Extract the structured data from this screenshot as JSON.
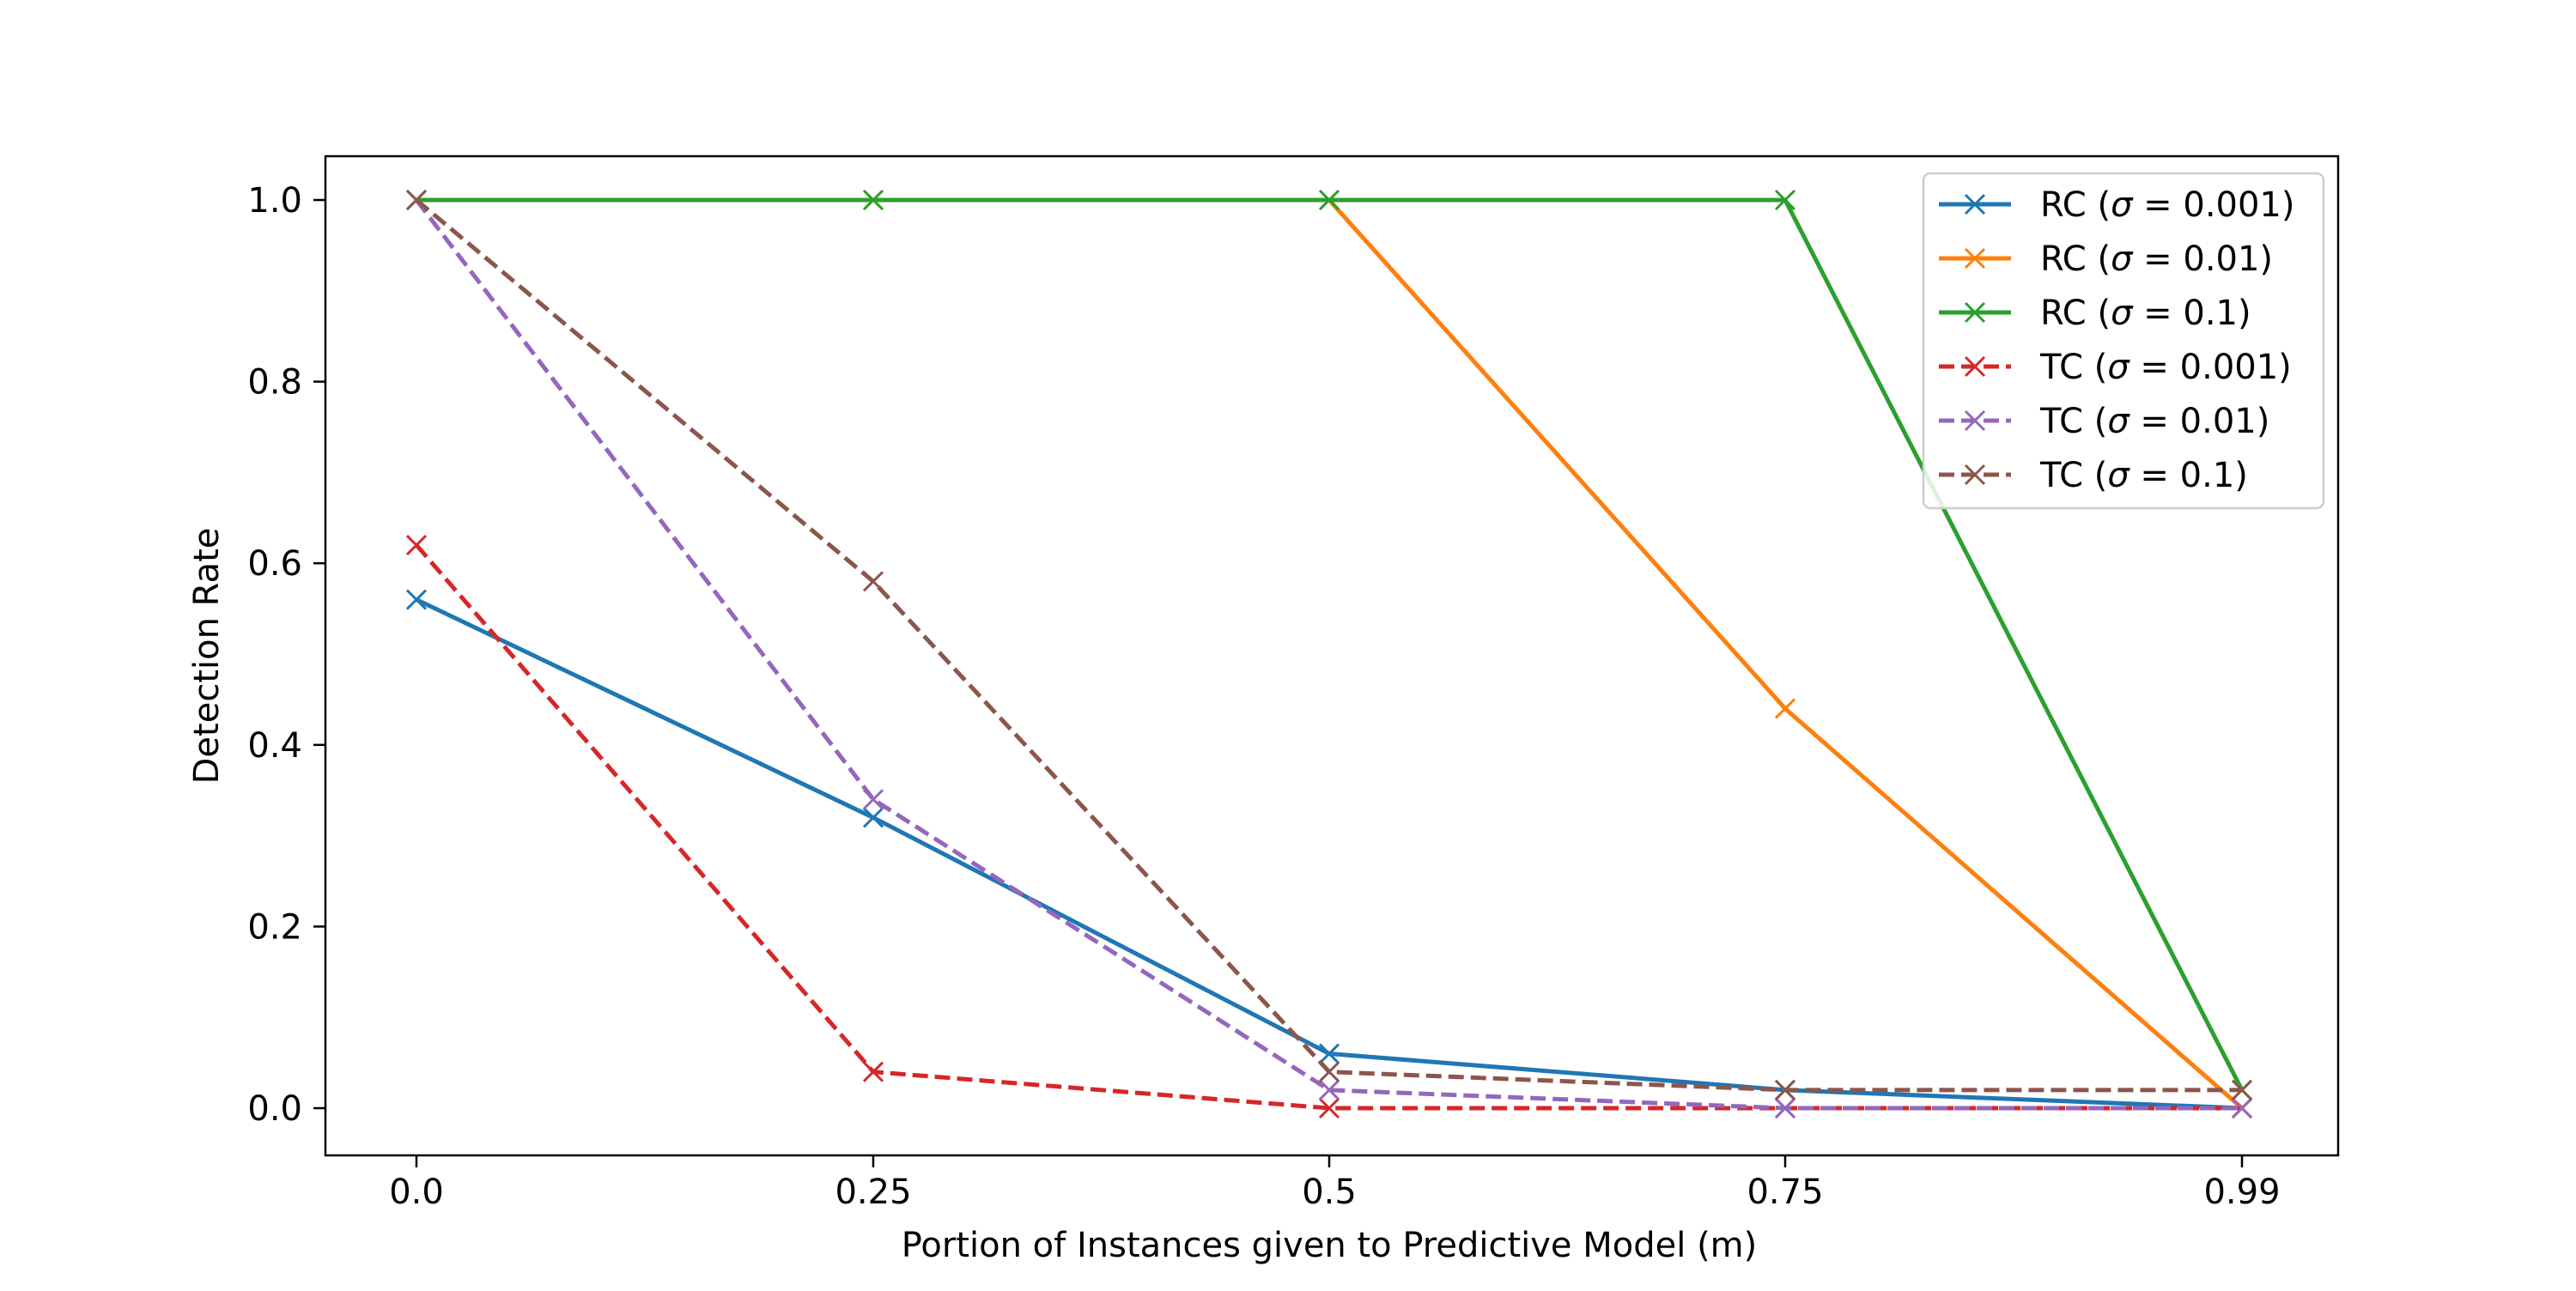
{
  "chart_data": {
    "type": "line",
    "title": "",
    "xlabel": "Portion of Instances given to Predictive Model (m)",
    "ylabel": "Detection Rate",
    "categories": [
      "0.0",
      "0.25",
      "0.5",
      "0.75",
      "0.99"
    ],
    "y_ticks": [
      "0.0",
      "0.2",
      "0.4",
      "0.6",
      "0.8",
      "1.0"
    ],
    "ylim": [
      -0.05,
      1.05
    ],
    "grid": false,
    "legend_position": "top-right",
    "series": [
      {
        "name": "RC",
        "sigma": "0.001",
        "color": "#1f77b4",
        "dashed": false,
        "values": [
          0.56,
          0.32,
          0.06,
          0.02,
          0.0
        ]
      },
      {
        "name": "RC",
        "sigma": "0.01",
        "color": "#ff7f0e",
        "dashed": false,
        "values": [
          1.0,
          1.0,
          1.0,
          0.44,
          0.0
        ]
      },
      {
        "name": "RC",
        "sigma": "0.1",
        "color": "#2ca02c",
        "dashed": false,
        "values": [
          1.0,
          1.0,
          1.0,
          1.0,
          0.02
        ]
      },
      {
        "name": "TC",
        "sigma": "0.001",
        "color": "#d62728",
        "dashed": true,
        "values": [
          0.62,
          0.04,
          0.0,
          0.0,
          0.0
        ]
      },
      {
        "name": "TC",
        "sigma": "0.01",
        "color": "#9467bd",
        "dashed": true,
        "values": [
          1.0,
          0.34,
          0.02,
          0.0,
          0.0
        ]
      },
      {
        "name": "TC",
        "sigma": "0.1",
        "color": "#8c564b",
        "dashed": true,
        "values": [
          1.0,
          0.58,
          0.04,
          0.02,
          0.02
        ]
      }
    ]
  }
}
